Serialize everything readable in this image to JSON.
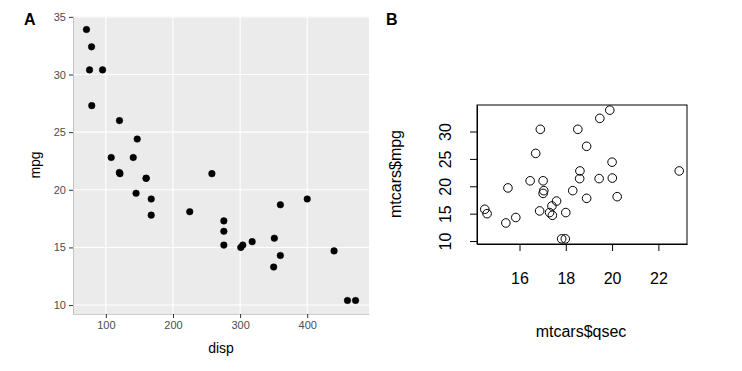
{
  "chart_data": [
    {
      "type": "scatter",
      "title": "A",
      "x_label": "disp",
      "y_label": "mpg",
      "x": [
        160,
        160,
        108,
        258,
        360,
        225,
        360,
        146.7,
        140.8,
        167.6,
        167.6,
        275.8,
        275.8,
        275.8,
        472,
        460,
        440,
        78.7,
        75.7,
        71.1,
        120.1,
        318,
        304,
        350,
        400,
        79,
        120.3,
        95.1,
        351,
        145,
        301,
        121
      ],
      "values": [
        21.0,
        21.0,
        22.8,
        21.4,
        18.7,
        18.1,
        14.3,
        24.4,
        22.8,
        19.2,
        17.8,
        16.4,
        17.3,
        15.2,
        10.4,
        10.4,
        14.7,
        32.4,
        30.4,
        33.9,
        21.5,
        15.5,
        15.2,
        13.3,
        19.2,
        27.3,
        26.0,
        30.4,
        15.8,
        19.7,
        15.0,
        21.4
      ],
      "xlim": [
        51.055,
        492.045
      ],
      "xticks": [
        100,
        200,
        300,
        400
      ],
      "ylim": [
        9.225,
        35.075
      ],
      "yticks": [
        10,
        15,
        20,
        25,
        30,
        35
      ],
      "grid": true,
      "color": "#000000",
      "marker": "circle"
    },
    {
      "type": "scatter",
      "title": "B",
      "x_label": "mtcars$qsec",
      "y_label": "mtcars$mpg",
      "x": [
        16.46,
        17.02,
        18.61,
        19.44,
        17.02,
        20.22,
        15.84,
        20.0,
        22.9,
        18.3,
        18.9,
        17.4,
        17.6,
        18.0,
        17.98,
        17.82,
        17.42,
        19.47,
        18.52,
        19.9,
        20.01,
        16.87,
        17.3,
        15.41,
        17.05,
        18.9,
        16.7,
        16.9,
        14.5,
        15.5,
        14.6,
        18.6
      ],
      "values": [
        21.0,
        21.0,
        22.8,
        21.4,
        18.7,
        18.1,
        14.3,
        24.4,
        22.8,
        19.2,
        17.8,
        16.4,
        17.3,
        15.2,
        10.4,
        10.4,
        14.7,
        32.4,
        30.4,
        33.9,
        21.5,
        15.5,
        15.2,
        13.3,
        19.2,
        27.3,
        26.0,
        30.4,
        15.8,
        19.7,
        15.0,
        21.4
      ],
      "xlim": [
        14.164,
        23.236
      ],
      "xticks": [
        16,
        18,
        20,
        22
      ],
      "ylim": [
        9.46,
        34.84
      ],
      "yticks": [
        10,
        15,
        20,
        25,
        30
      ],
      "grid": false,
      "color": "#000000",
      "marker": "open-circle"
    }
  ]
}
